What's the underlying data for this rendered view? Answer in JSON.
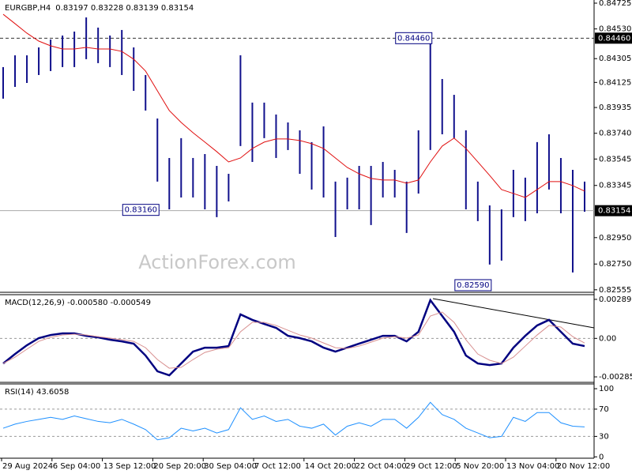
{
  "watermark": "ActionForex.com",
  "chart_data": [
    {
      "type": "hilo",
      "title": "EURGBP,H4",
      "subtitle": "0.83197 0.83228 0.83139 0.83154",
      "color": "#10108c",
      "high": [
        0.84241,
        0.8433,
        0.8433,
        0.8439,
        0.8445,
        0.8448,
        0.8451,
        0.84617,
        0.8454,
        0.8448,
        0.84522,
        0.8439,
        0.84181,
        0.83852,
        0.83553,
        0.83703,
        0.83553,
        0.83583,
        0.83493,
        0.83433,
        0.8433,
        0.83972,
        0.83972,
        0.83882,
        0.83822,
        0.83762,
        0.83673,
        0.83792,
        0.83374,
        0.83404,
        0.83493,
        0.83493,
        0.83523,
        0.83463,
        0.83374,
        0.83762,
        0.8448,
        0.84151,
        0.84031,
        0.83762,
        0.83374,
        0.83194,
        0.83164,
        0.83463,
        0.83404,
        0.83673,
        0.83732,
        0.83553,
        0.83463,
        0.83374
      ],
      "low": [
        0.84002,
        0.84091,
        0.84121,
        0.84181,
        0.84211,
        0.84241,
        0.84241,
        0.84301,
        0.84271,
        0.84241,
        0.84181,
        0.84061,
        0.83912,
        0.83374,
        0.83164,
        0.83254,
        0.83254,
        0.83164,
        0.83105,
        0.83224,
        0.83643,
        0.83523,
        0.83703,
        0.83553,
        0.83613,
        0.83433,
        0.83314,
        0.83254,
        0.82955,
        0.83164,
        0.83164,
        0.83045,
        0.83254,
        0.83254,
        0.82985,
        0.83284,
        0.83613,
        0.83732,
        0.83703,
        0.83164,
        0.83075,
        0.82746,
        0.82776,
        0.83105,
        0.83075,
        0.83134,
        0.83314,
        0.83134,
        0.82686,
        0.83146
      ],
      "ma": {
        "color": "#e01010",
        "values": [
          0.84641,
          0.8457,
          0.84498,
          0.84438,
          0.84402,
          0.84378,
          0.84378,
          0.8439,
          0.84378,
          0.84378,
          0.8436,
          0.84301,
          0.84211,
          0.84061,
          0.83912,
          0.83822,
          0.83744,
          0.83673,
          0.83601,
          0.83523,
          0.83553,
          0.83625,
          0.83673,
          0.83697,
          0.83697,
          0.83685,
          0.83661,
          0.83625,
          0.83553,
          0.83481,
          0.83433,
          0.83398,
          0.83386,
          0.83386,
          0.83362,
          0.83386,
          0.83523,
          0.83643,
          0.83703,
          0.83625,
          0.83523,
          0.83421,
          0.83314,
          0.83284,
          0.83254,
          0.83314,
          0.83374,
          0.83374,
          0.83344,
          0.83302
        ]
      },
      "ylim": [
        0.82536,
        0.84749
      ],
      "yticks": [
        0.84725,
        {
          "value": 0.8453,
          "label": "0.84530"
        },
        0.84305,
        0.84125,
        0.83935,
        {
          "value": 0.8374,
          "label": "0.83740"
        },
        0.83545,
        0.83345,
        {
          "value": 0.8295,
          "label": "0.82950"
        },
        {
          "value": 0.8275,
          "label": "0.82750"
        },
        0.82555
      ],
      "levels": [
        {
          "value": 0.8446,
          "label": "0.84460",
          "style": "dashed"
        },
        {
          "value": 0.83154,
          "label": "0.83154",
          "style": "solid"
        }
      ],
      "annotations": [
        {
          "index": 36,
          "value": 0.8446,
          "label": "0.84460"
        },
        {
          "index": 13,
          "value": 0.8316,
          "label": "0.83160"
        },
        {
          "index": 41,
          "value": 0.8259,
          "label": "0.82590"
        }
      ]
    },
    {
      "type": "line",
      "title": "MACD(12,26,9) -0.000580 -0.000549",
      "series": [
        {
          "color": "#000080",
          "width": 2.5,
          "values": [
            -0.00186,
            -0.00116,
            -0.00051,
            2e-05,
            0.00025,
            0.00037,
            0.00037,
            0.00019,
            8e-05,
            -0.0001,
            -0.00022,
            -0.00039,
            -0.00127,
            -0.00244,
            -0.00274,
            -0.00186,
            -0.00098,
            -0.00069,
            -0.00069,
            -0.00057,
            0.00178,
            0.00137,
            0.00107,
            0.00078,
            0.00019,
            2e-05,
            -0.00022,
            -0.00069,
            -0.00098,
            -0.00069,
            -0.00039,
            -0.0001,
            0.00019,
            0.00019,
            -0.00022,
            0.00049,
            0.00283,
            0.00166,
            0.00049,
            -0.00127,
            -0.00186,
            -0.00198,
            -0.00186,
            -0.00069,
            0.00019,
            0.00096,
            0.00137,
            0.00049,
            -0.00039,
            -0.00057
          ]
        },
        {
          "color": "#d89090",
          "width": 1,
          "values": [
            -0.00186,
            -0.00139,
            -0.0008,
            -0.00022,
            8e-05,
            0.00025,
            0.00031,
            0.00025,
            0.00013,
            2e-05,
            -0.0001,
            -0.00022,
            -0.00069,
            -0.00157,
            -0.00221,
            -0.00215,
            -0.00157,
            -0.00104,
            -0.0008,
            -0.00069,
            0.00049,
            0.00119,
            0.00119,
            0.00096,
            0.0006,
            0.00025,
            2e-05,
            -0.00034,
            -0.00069,
            -0.00075,
            -0.00057,
            -0.00028,
            2e-05,
            0.00013,
            2e-05,
            0.00025,
            0.00166,
            0.00195,
            0.00119,
            -0.0001,
            -0.00116,
            -0.00162,
            -0.00186,
            -0.00139,
            -0.00057,
            0.00025,
            0.00096,
            0.00084,
            0.00013,
            -0.00034
          ]
        }
      ],
      "ylim": [
        -0.00326,
        0.00324
      ],
      "yticks": [
        0.002893,
        {
          "value": 0,
          "label": "0.00"
        },
        -0.002852
      ],
      "grid": [
        false,
        true,
        false
      ]
    },
    {
      "type": "line",
      "title": "RSI(14) 43.6058",
      "series": [
        {
          "color": "#1e90ff",
          "width": 1,
          "values": [
            42,
            48,
            52,
            55,
            58,
            55,
            60,
            56,
            52,
            50,
            55,
            48,
            40,
            25,
            28,
            42,
            38,
            42,
            35,
            40,
            72,
            55,
            60,
            52,
            55,
            45,
            42,
            48,
            32,
            45,
            50,
            45,
            55,
            55,
            42,
            58,
            80,
            62,
            55,
            42,
            35,
            28,
            30,
            58,
            52,
            65,
            65,
            50,
            45,
            44
          ]
        }
      ],
      "ylim": [
        -2,
        107
      ],
      "yticks": [
        100,
        70,
        30,
        0
      ],
      "grid": [
        false,
        true,
        true,
        false
      ],
      "xtick_labels": [
        "29 Aug 2024",
        "6 Sep 04:00",
        "13 Sep 12:00",
        "20 Sep 20:00",
        "30 Sep 04:00",
        "7 Oct 12:00",
        "14 Oct 20:00",
        "22 Oct 04:00",
        "29 Oct 12:00",
        "5 Nov 20:00",
        "13 Nov 04:00",
        "20 Nov 12:00"
      ]
    }
  ]
}
